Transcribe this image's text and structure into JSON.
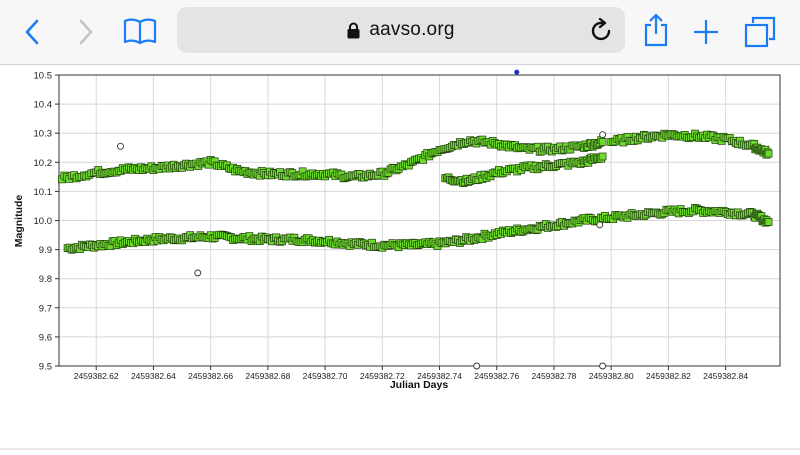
{
  "browser": {
    "url": "aavso.org",
    "buttons": [
      "back",
      "forward",
      "bookmarks",
      "reload",
      "share",
      "new-tab",
      "tabs"
    ],
    "accent": "#1a7cf5"
  },
  "chart_data": {
    "type": "scatter",
    "xlabel": "Julian Days",
    "ylabel": "Magnitude",
    "xlim": [
      2459382.607,
      2459382.859
    ],
    "ylim": [
      10.5,
      9.5
    ],
    "y_inverted": true,
    "grid": true,
    "x_ticks": [
      "2459382.62",
      "2459382.64",
      "2459382.66",
      "2459382.68",
      "2459382.70",
      "2459382.72",
      "2459382.74",
      "2459382.76",
      "2459382.78",
      "2459382.80",
      "2459382.82",
      "2459382.84"
    ],
    "x_tick_values": [
      2459382.62,
      2459382.64,
      2459382.66,
      2459382.68,
      2459382.7,
      2459382.72,
      2459382.74,
      2459382.76,
      2459382.78,
      2459382.8,
      2459382.82,
      2459382.84
    ],
    "y_ticks": [
      "9.5",
      "9.6",
      "9.7",
      "9.8",
      "9.9",
      "10.0",
      "10.1",
      "10.2",
      "10.3",
      "10.4",
      "10.5"
    ],
    "y_tick_values": [
      9.5,
      9.6,
      9.7,
      9.8,
      9.9,
      10.0,
      10.1,
      10.2,
      10.3,
      10.4,
      10.5
    ],
    "marker_color": "#6edb2c",
    "series": [
      {
        "marker": "square",
        "x": [
          2459382.61,
          2459382.62,
          2459382.63,
          2459382.64,
          2459382.65,
          2459382.66,
          2459382.67,
          2459382.68,
          2459382.69,
          2459382.7,
          2459382.71,
          2459382.72,
          2459382.73,
          2459382.74,
          2459382.75,
          2459382.76,
          2459382.77,
          2459382.78,
          2459382.79,
          2459382.8,
          2459382.81,
          2459382.82,
          2459382.83,
          2459382.84,
          2459382.85,
          2459382.855
        ],
        "y": [
          9.905,
          9.915,
          9.925,
          9.935,
          9.94,
          9.945,
          9.94,
          9.935,
          9.935,
          9.93,
          9.92,
          9.915,
          9.915,
          9.92,
          9.935,
          9.955,
          9.97,
          9.985,
          10.0,
          10.01,
          10.02,
          10.03,
          10.035,
          10.03,
          10.02,
          9.995
        ]
      },
      {
        "marker": "square",
        "x": [
          2459382.608,
          2459382.62,
          2459382.63,
          2459382.64,
          2459382.65,
          2459382.66,
          2459382.67,
          2459382.68,
          2459382.69,
          2459382.7,
          2459382.71,
          2459382.72,
          2459382.73,
          2459382.74,
          2459382.75,
          2459382.76,
          2459382.77,
          2459382.78,
          2459382.79,
          2459382.797
        ],
        "y": [
          10.145,
          10.165,
          10.175,
          10.18,
          10.19,
          10.2,
          10.17,
          10.16,
          10.16,
          10.16,
          10.15,
          10.16,
          10.195,
          10.245,
          10.275,
          10.265,
          10.245,
          10.245,
          10.255,
          10.27
        ]
      },
      {
        "marker": "square",
        "x": [
          2459382.742,
          2459382.75,
          2459382.76,
          2459382.77,
          2459382.78,
          2459382.79,
          2459382.797
        ],
        "y": [
          10.145,
          10.135,
          10.165,
          10.18,
          10.19,
          10.2,
          10.22
        ]
      },
      {
        "marker": "square",
        "x": [
          2459382.8,
          2459382.81,
          2459382.82,
          2459382.83,
          2459382.84,
          2459382.85,
          2459382.855
        ],
        "y": [
          10.27,
          10.285,
          10.295,
          10.29,
          10.28,
          10.255,
          10.23
        ]
      },
      {
        "marker": "circle-open",
        "x": [
          2459382.6285,
          2459382.6555,
          2459382.753,
          2459382.797,
          2459382.796,
          2459382.797
        ],
        "y": [
          10.255,
          9.82,
          9.5,
          9.5,
          9.985,
          10.295
        ]
      },
      {
        "marker": "dot-blue",
        "x": [
          2459382.767
        ],
        "y": [
          10.51
        ]
      }
    ]
  }
}
